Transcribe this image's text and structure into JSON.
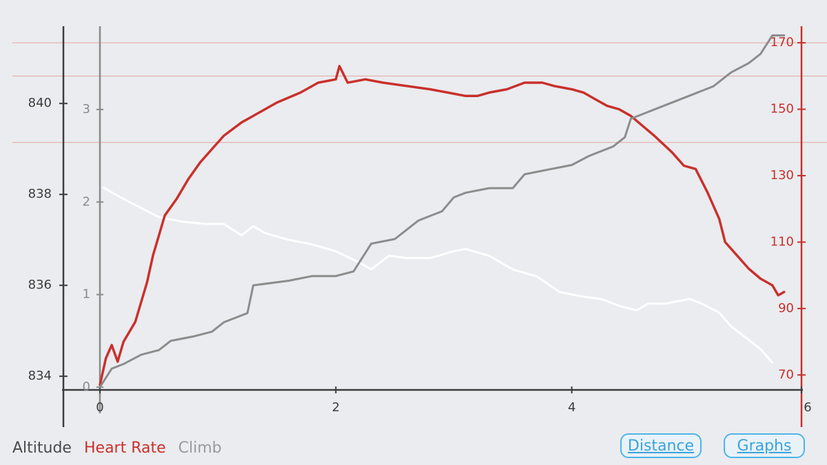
{
  "chart_data": {
    "type": "line",
    "x": {
      "ticks": [
        0,
        2,
        4,
        6
      ],
      "range": [
        0,
        6
      ]
    },
    "axes": {
      "altitude": {
        "ticks": [
          834,
          836,
          838,
          840
        ],
        "range": [
          833.7,
          841.7
        ]
      },
      "climb": {
        "ticks": [
          0,
          1,
          2,
          3
        ],
        "range": [
          -0.03,
          3.9
        ]
      },
      "heart_rate": {
        "ticks": [
          70,
          90,
          110,
          130,
          150,
          170
        ],
        "range": [
          65.5,
          175
        ]
      }
    },
    "grid": true,
    "series": [
      {
        "name": "Altitude",
        "axis": "altitude",
        "color": "#ffffff",
        "points": [
          [
            0.03,
            838.15
          ],
          [
            0.2,
            837.9
          ],
          [
            0.35,
            837.7
          ],
          [
            0.5,
            837.5
          ],
          [
            0.7,
            837.4
          ],
          [
            0.9,
            837.35
          ],
          [
            1.05,
            837.35
          ],
          [
            1.2,
            837.1
          ],
          [
            1.3,
            837.3
          ],
          [
            1.4,
            837.15
          ],
          [
            1.6,
            837.0
          ],
          [
            1.8,
            836.9
          ],
          [
            2.0,
            836.75
          ],
          [
            2.2,
            836.5
          ],
          [
            2.3,
            836.35
          ],
          [
            2.45,
            836.65
          ],
          [
            2.6,
            836.6
          ],
          [
            2.8,
            836.6
          ],
          [
            3.0,
            836.75
          ],
          [
            3.1,
            836.8
          ],
          [
            3.3,
            836.65
          ],
          [
            3.5,
            836.35
          ],
          [
            3.7,
            836.2
          ],
          [
            3.9,
            835.85
          ],
          [
            4.1,
            835.75
          ],
          [
            4.25,
            835.7
          ],
          [
            4.4,
            835.55
          ],
          [
            4.55,
            835.45
          ],
          [
            4.65,
            835.6
          ],
          [
            4.8,
            835.6
          ],
          [
            5.0,
            835.7
          ],
          [
            5.1,
            835.6
          ],
          [
            5.25,
            835.4
          ],
          [
            5.35,
            835.1
          ],
          [
            5.45,
            834.9
          ],
          [
            5.6,
            834.6
          ],
          [
            5.7,
            834.3
          ]
        ]
      },
      {
        "name": "Heart Rate",
        "axis": "heart_rate",
        "color": "#c9302c",
        "points": [
          [
            0.0,
            67
          ],
          [
            0.05,
            75
          ],
          [
            0.1,
            79
          ],
          [
            0.15,
            74
          ],
          [
            0.2,
            80
          ],
          [
            0.3,
            86
          ],
          [
            0.35,
            92
          ],
          [
            0.4,
            98
          ],
          [
            0.45,
            106
          ],
          [
            0.5,
            112
          ],
          [
            0.55,
            118
          ],
          [
            0.65,
            123
          ],
          [
            0.75,
            129
          ],
          [
            0.85,
            134
          ],
          [
            0.95,
            138
          ],
          [
            1.05,
            142
          ],
          [
            1.2,
            146
          ],
          [
            1.35,
            149
          ],
          [
            1.5,
            152
          ],
          [
            1.7,
            155
          ],
          [
            1.85,
            158
          ],
          [
            2.0,
            159
          ],
          [
            2.03,
            163
          ],
          [
            2.1,
            158
          ],
          [
            2.25,
            159
          ],
          [
            2.4,
            158
          ],
          [
            2.6,
            157
          ],
          [
            2.8,
            156
          ],
          [
            2.95,
            155
          ],
          [
            3.1,
            154
          ],
          [
            3.2,
            154
          ],
          [
            3.3,
            155
          ],
          [
            3.45,
            156
          ],
          [
            3.6,
            158
          ],
          [
            3.75,
            158
          ],
          [
            3.85,
            157
          ],
          [
            4.0,
            156
          ],
          [
            4.1,
            155
          ],
          [
            4.2,
            153
          ],
          [
            4.3,
            151
          ],
          [
            4.4,
            150
          ],
          [
            4.5,
            148
          ],
          [
            4.6,
            145
          ],
          [
            4.7,
            142
          ],
          [
            4.85,
            137
          ],
          [
            4.95,
            133
          ],
          [
            5.05,
            132
          ],
          [
            5.15,
            125
          ],
          [
            5.25,
            117
          ],
          [
            5.3,
            110
          ],
          [
            5.4,
            106
          ],
          [
            5.5,
            102
          ],
          [
            5.6,
            99
          ],
          [
            5.7,
            97
          ],
          [
            5.75,
            94
          ],
          [
            5.8,
            95
          ]
        ]
      },
      {
        "name": "Climb",
        "axis": "climb",
        "color": "#8c8c8c",
        "points": [
          [
            0.0,
            0
          ],
          [
            0.1,
            0.2
          ],
          [
            0.2,
            0.25
          ],
          [
            0.35,
            0.35
          ],
          [
            0.5,
            0.4
          ],
          [
            0.6,
            0.5
          ],
          [
            0.8,
            0.55
          ],
          [
            0.95,
            0.6
          ],
          [
            1.05,
            0.7
          ],
          [
            1.25,
            0.8
          ],
          [
            1.3,
            1.1
          ],
          [
            1.6,
            1.15
          ],
          [
            1.8,
            1.2
          ],
          [
            2.0,
            1.2
          ],
          [
            2.15,
            1.25
          ],
          [
            2.3,
            1.55
          ],
          [
            2.5,
            1.6
          ],
          [
            2.6,
            1.7
          ],
          [
            2.7,
            1.8
          ],
          [
            2.8,
            1.85
          ],
          [
            2.9,
            1.9
          ],
          [
            3.0,
            2.05
          ],
          [
            3.1,
            2.1
          ],
          [
            3.3,
            2.15
          ],
          [
            3.5,
            2.15
          ],
          [
            3.6,
            2.3
          ],
          [
            3.8,
            2.35
          ],
          [
            4.0,
            2.4
          ],
          [
            4.15,
            2.5
          ],
          [
            4.35,
            2.6
          ],
          [
            4.45,
            2.7
          ],
          [
            4.5,
            2.9
          ],
          [
            4.6,
            2.95
          ],
          [
            4.8,
            3.05
          ],
          [
            5.0,
            3.15
          ],
          [
            5.2,
            3.25
          ],
          [
            5.35,
            3.4
          ],
          [
            5.5,
            3.5
          ],
          [
            5.6,
            3.6
          ],
          [
            5.7,
            3.8
          ],
          [
            5.8,
            3.8
          ]
        ]
      }
    ]
  },
  "legend": {
    "altitude": "Altitude",
    "heart_rate": "Heart Rate",
    "climb": "Climb"
  },
  "buttons": {
    "distance": "Distance",
    "graphs": "Graphs"
  }
}
